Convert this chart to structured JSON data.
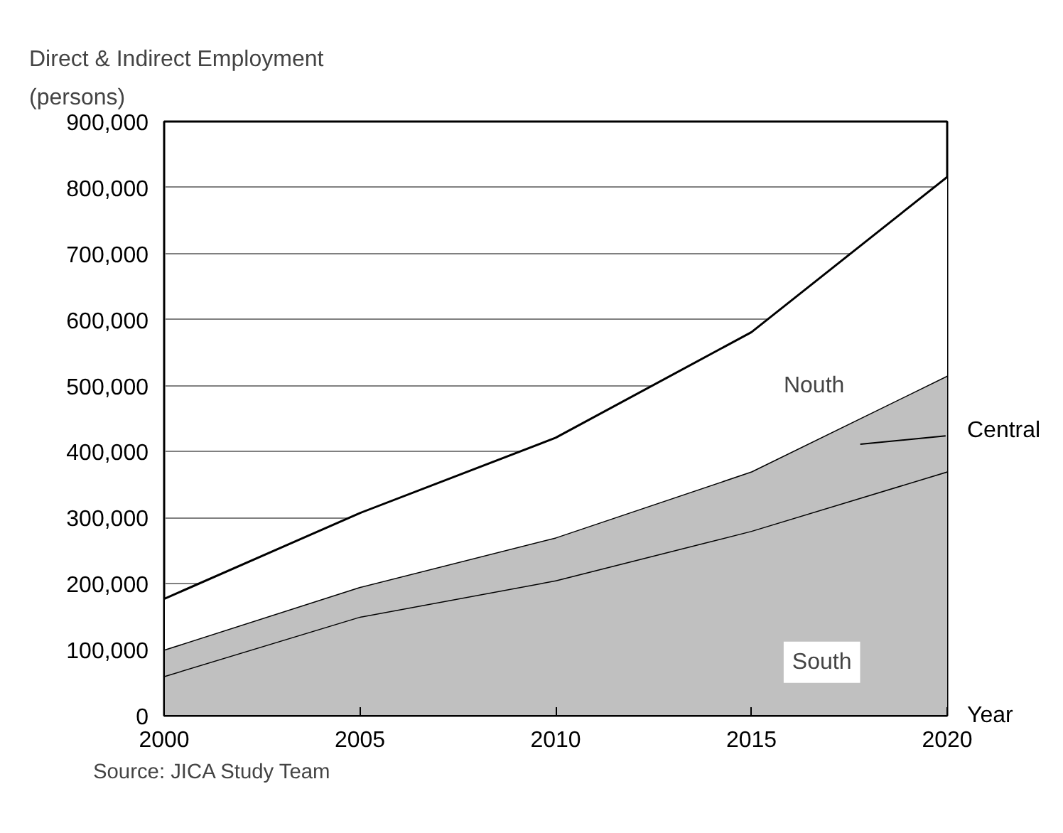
{
  "chart_data": {
    "type": "area",
    "stacked": true,
    "ylabel": "Direct & Indirect Employment\n(persons)",
    "xlabel": "Year",
    "x": [
      2000,
      2005,
      2010,
      2015,
      2020
    ],
    "series": [
      {
        "name": "South",
        "color": "#c0c0c0",
        "values": [
          60000,
          150000,
          205000,
          280000,
          370000
        ]
      },
      {
        "name": "Central",
        "color": "#c0c0c0",
        "values": [
          40000,
          45000,
          65000,
          90000,
          145000
        ]
      },
      {
        "name": "Nouth",
        "color": "#ffffff",
        "values": [
          77000,
          112000,
          151000,
          211000,
          301000
        ]
      }
    ],
    "xlim": [
      2000,
      2020
    ],
    "xticks": [
      2000,
      2005,
      2010,
      2015,
      2020
    ],
    "ylim": [
      0,
      900000
    ],
    "yticks": [
      {
        "value": 0,
        "label": "0"
      },
      {
        "value": 100000,
        "label": "100,000"
      },
      {
        "value": 200000,
        "label": "200,000"
      },
      {
        "value": 300000,
        "label": "300,000"
      },
      {
        "value": 400000,
        "label": "400,000"
      },
      {
        "value": 500000,
        "label": "500,000"
      },
      {
        "value": 600000,
        "label": "600,000"
      },
      {
        "value": 700000,
        "label": "700,000"
      },
      {
        "value": 800000,
        "label": "800,000"
      },
      {
        "value": 900000,
        "label": "900,000"
      }
    ],
    "grid": "y",
    "annotations": [
      "Source: JICA Study Team"
    ]
  }
}
